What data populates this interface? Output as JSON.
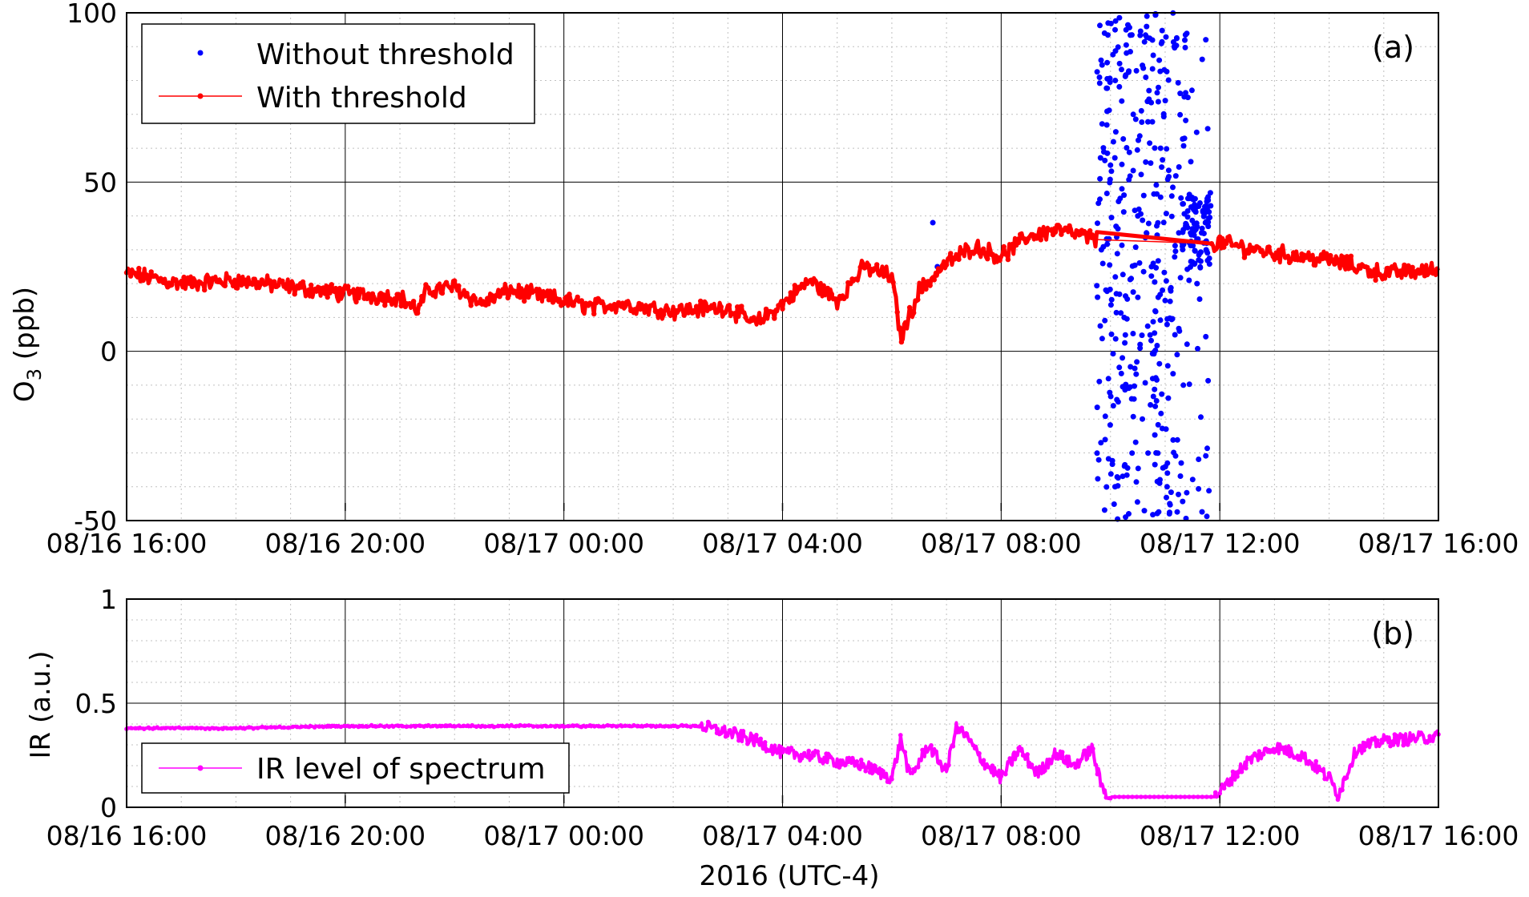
{
  "chart_data": [
    {
      "type": "scatter",
      "panel_label": "(a)",
      "ylabel_main": "O",
      "ylabel_sub": "3",
      "ylabel_rest": " (ppb)",
      "ylim": [
        -50,
        100
      ],
      "yticks": [
        -50,
        0,
        50,
        100
      ],
      "xlim": [
        "08/16 16:00",
        "08/17 16:00"
      ],
      "xticks": [
        "08/16 16:00",
        "08/16 20:00",
        "08/17 00:00",
        "08/17 04:00",
        "08/17 08:00",
        "08/17 12:00",
        "08/17 16:00"
      ],
      "grid": true,
      "legend_position": "top-left",
      "series": [
        {
          "name": "Without threshold",
          "style": "dots",
          "color": "#0000ff",
          "note_range": [
            "08/17 09:45",
            "08/17 11:50"
          ],
          "x": [
            "08/17 09:50",
            "08/17 10:00",
            "08/17 10:05",
            "08/17 10:10",
            "08/17 10:15",
            "08/17 10:20",
            "08/17 10:25",
            "08/17 10:30",
            "08/17 10:35",
            "08/17 10:40",
            "08/17 10:45",
            "08/17 10:50",
            "08/17 10:55",
            "08/17 11:00",
            "08/17 11:05",
            "08/17 11:10",
            "08/17 11:15",
            "08/17 11:20",
            "08/17 11:25",
            "08/17 11:30",
            "08/17 11:35",
            "08/17 11:40",
            "08/17 11:45",
            "08/17 06:45",
            "08/17 06:50"
          ],
          "y": [
            30,
            55,
            -40,
            85,
            10,
            -48,
            70,
            40,
            -20,
            99,
            25,
            -30,
            60,
            15,
            -45,
            90,
            35,
            -10,
            75,
            45,
            20,
            35,
            30,
            38,
            25
          ]
        },
        {
          "name": "With threshold",
          "style": "line-dots",
          "color": "#ff0000",
          "x": [
            "08/16 16:00",
            "08/16 17:00",
            "08/16 18:00",
            "08/16 19:00",
            "08/16 20:00",
            "08/16 21:00",
            "08/16 21:20",
            "08/16 21:30",
            "08/16 22:00",
            "08/16 22:30",
            "08/16 23:00",
            "08/17 00:00",
            "08/17 00:30",
            "08/17 01:00",
            "08/17 02:00",
            "08/17 03:00",
            "08/17 03:30",
            "08/17 04:00",
            "08/17 04:30",
            "08/17 05:00",
            "08/17 05:30",
            "08/17 06:00",
            "08/17 06:10",
            "08/17 06:30",
            "08/17 07:00",
            "08/17 07:30",
            "08/17 08:00",
            "08/17 08:30",
            "08/17 09:00",
            "08/17 09:30",
            "08/17 09:45",
            "08/17 10:00",
            "08/17 11:00",
            "08/17 12:00",
            "08/17 13:00",
            "08/17 14:00",
            "08/17 15:00",
            "08/17 16:00"
          ],
          "y": [
            23,
            20,
            21,
            19,
            17,
            16,
            12,
            18,
            19,
            14,
            18,
            15,
            13,
            14,
            12,
            13,
            8,
            14,
            21,
            15,
            25,
            22,
            4,
            18,
            26,
            31,
            28,
            34,
            36,
            34,
            33,
            33,
            31,
            32,
            29,
            27,
            23,
            24
          ]
        }
      ]
    },
    {
      "type": "line",
      "panel_label": "(b)",
      "ylabel": "IR (a.u.)",
      "ylim": [
        0,
        1
      ],
      "yticks": [
        0,
        0.5,
        1
      ],
      "yticklabels": [
        "0",
        "0.5",
        "1"
      ],
      "xlim": [
        "08/16 16:00",
        "08/17 16:00"
      ],
      "xticks": [
        "08/16 16:00",
        "08/16 20:00",
        "08/17 00:00",
        "08/17 04:00",
        "08/17 08:00",
        "08/17 12:00",
        "08/17 16:00"
      ],
      "xlabel": "2016 (UTC-4)",
      "grid": true,
      "legend_position": "bottom-left",
      "series": [
        {
          "name": "IR level of spectrum",
          "color": "#ff00ff",
          "x": [
            "08/16 16:00",
            "08/16 18:00",
            "08/16 20:00",
            "08/16 22:00",
            "08/17 00:00",
            "08/17 02:00",
            "08/17 02:30",
            "08/17 03:00",
            "08/17 03:30",
            "08/17 04:00",
            "08/17 04:30",
            "08/17 05:00",
            "08/17 05:30",
            "08/17 06:00",
            "08/17 06:10",
            "08/17 06:20",
            "08/17 06:40",
            "08/17 07:00",
            "08/17 07:10",
            "08/17 07:20",
            "08/17 07:40",
            "08/17 08:00",
            "08/17 08:20",
            "08/17 08:40",
            "08/17 09:00",
            "08/17 09:20",
            "08/17 09:40",
            "08/17 09:50",
            "08/17 10:00",
            "08/17 11:00",
            "08/17 11:55",
            "08/17 12:30",
            "08/17 13:00",
            "08/17 13:30",
            "08/17 14:00",
            "08/17 14:10",
            "08/17 14:30",
            "08/17 15:00",
            "08/17 16:00"
          ],
          "y": [
            0.38,
            0.38,
            0.39,
            0.39,
            0.39,
            0.39,
            0.39,
            0.36,
            0.32,
            0.26,
            0.25,
            0.22,
            0.2,
            0.14,
            0.33,
            0.14,
            0.3,
            0.17,
            0.38,
            0.35,
            0.22,
            0.14,
            0.28,
            0.16,
            0.26,
            0.2,
            0.28,
            0.1,
            0.05,
            0.05,
            0.05,
            0.22,
            0.29,
            0.25,
            0.14,
            0.06,
            0.28,
            0.32,
            0.34
          ]
        }
      ]
    }
  ]
}
